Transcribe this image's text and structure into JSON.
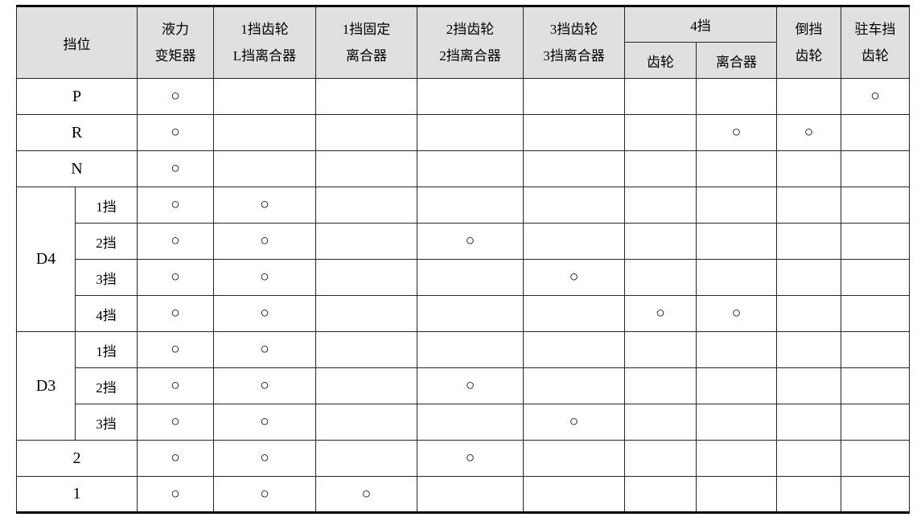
{
  "colors": {
    "header_bg": "#e0e0e0",
    "border": "#262626",
    "text": "#000000"
  },
  "table": {
    "mark_symbol": "○",
    "header": {
      "gear_position": "挡位",
      "columns": [
        {
          "line1": "液力",
          "line2": "变矩器"
        },
        {
          "line1": "1挡齿轮",
          "line2": "L挡离合器"
        },
        {
          "line1": "1挡固定",
          "line2": "离合器"
        },
        {
          "line1": "2挡齿轮",
          "line2": "2挡离合器"
        },
        {
          "line1": "3挡齿轮",
          "line2": "3挡离合器"
        }
      ],
      "gear4": {
        "label": "4挡",
        "subs": [
          "齿轮",
          "离合器"
        ]
      },
      "tail_columns": [
        {
          "line1": "倒挡",
          "line2": "齿轮"
        },
        {
          "line1": "驻车挡",
          "line2": "齿轮"
        }
      ]
    },
    "column_keys": [
      "torque_converter",
      "gear1_gear_L_clutch",
      "gear1_fixed_clutch",
      "gear2_gear_clutch",
      "gear3_gear_clutch",
      "gear4_gear",
      "gear4_clutch",
      "reverse_gear",
      "parking_gear"
    ],
    "rows": [
      {
        "kind": "merged",
        "label": "P",
        "marks": [
          1,
          0,
          0,
          0,
          0,
          0,
          0,
          0,
          1
        ]
      },
      {
        "kind": "merged",
        "label": "R",
        "marks": [
          1,
          0,
          0,
          0,
          0,
          0,
          1,
          1,
          0
        ]
      },
      {
        "kind": "merged",
        "label": "N",
        "marks": [
          1,
          0,
          0,
          0,
          0,
          0,
          0,
          0,
          0
        ]
      },
      {
        "kind": "group_start",
        "group": "D4",
        "span": 4,
        "sub": "1挡",
        "marks": [
          1,
          1,
          0,
          0,
          0,
          0,
          0,
          0,
          0
        ]
      },
      {
        "kind": "group_sub",
        "sub": "2挡",
        "marks": [
          1,
          1,
          0,
          1,
          0,
          0,
          0,
          0,
          0
        ]
      },
      {
        "kind": "group_sub",
        "sub": "3挡",
        "marks": [
          1,
          1,
          0,
          0,
          1,
          0,
          0,
          0,
          0
        ]
      },
      {
        "kind": "group_sub",
        "sub": "4挡",
        "marks": [
          1,
          1,
          0,
          0,
          0,
          1,
          1,
          0,
          0
        ]
      },
      {
        "kind": "group_start",
        "group": "D3",
        "span": 3,
        "sub": "1挡",
        "marks": [
          1,
          1,
          0,
          0,
          0,
          0,
          0,
          0,
          0
        ]
      },
      {
        "kind": "group_sub",
        "sub": "2挡",
        "marks": [
          1,
          1,
          0,
          1,
          0,
          0,
          0,
          0,
          0
        ]
      },
      {
        "kind": "group_sub",
        "sub": "3挡",
        "marks": [
          1,
          1,
          0,
          0,
          1,
          0,
          0,
          0,
          0
        ]
      },
      {
        "kind": "merged",
        "label": "2",
        "marks": [
          1,
          1,
          0,
          1,
          0,
          0,
          0,
          0,
          0
        ]
      },
      {
        "kind": "merged",
        "label": "1",
        "marks": [
          1,
          1,
          1,
          0,
          0,
          0,
          0,
          0,
          0
        ]
      }
    ]
  }
}
